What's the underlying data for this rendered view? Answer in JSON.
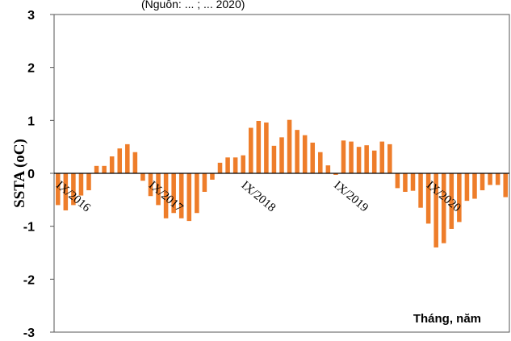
{
  "caption_fragment": "(Nguồn: ... ; ... 2020)",
  "chart_data": {
    "type": "bar",
    "title": "",
    "ylabel": "SSTA (oC)",
    "xlabel": "Tháng, năm",
    "ylim": [
      -3,
      3
    ],
    "yticks": [
      3,
      2,
      1,
      0,
      -1,
      -2,
      -3
    ],
    "x_tick_labels": [
      {
        "index": 0,
        "label": "IX/2016"
      },
      {
        "index": 12,
        "label": "IX/2017"
      },
      {
        "index": 24,
        "label": "IX/2018"
      },
      {
        "index": 36,
        "label": "IX/2019"
      },
      {
        "index": 48,
        "label": "IX/2020"
      }
    ],
    "bar_color": "#ee7d2a",
    "grid": false,
    "values": [
      -0.6,
      -0.7,
      -0.6,
      -0.42,
      -0.32,
      0.14,
      0.14,
      0.32,
      0.47,
      0.55,
      0.4,
      -0.14,
      -0.43,
      -0.6,
      -0.85,
      -0.75,
      -0.85,
      -0.9,
      -0.75,
      -0.35,
      -0.12,
      0.2,
      0.3,
      0.3,
      0.34,
      0.86,
      0.99,
      0.96,
      0.52,
      0.68,
      1.01,
      0.82,
      0.72,
      0.58,
      0.4,
      0.15,
      -0.03,
      0.62,
      0.6,
      0.5,
      0.53,
      0.43,
      0.6,
      0.55,
      -0.28,
      -0.35,
      -0.33,
      -0.65,
      -0.95,
      -1.4,
      -1.32,
      -1.05,
      -0.92,
      -0.52,
      -0.48,
      -0.32,
      -0.22,
      -0.22,
      -0.45
    ]
  }
}
